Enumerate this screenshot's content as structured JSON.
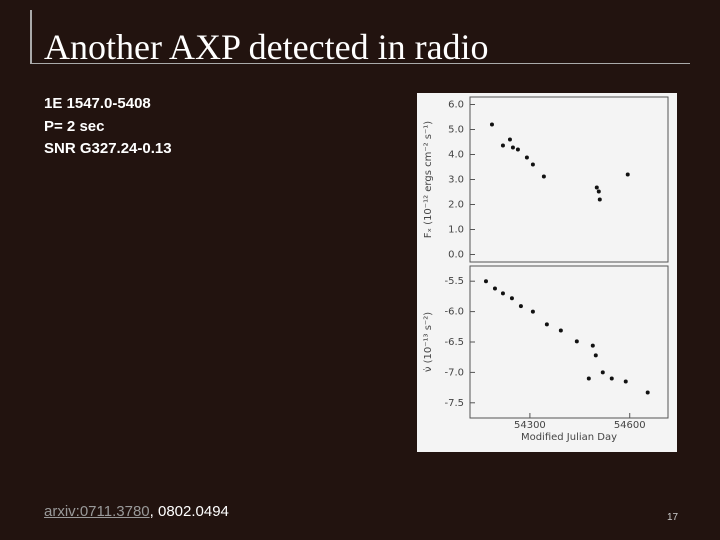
{
  "slide": {
    "title": "Another AXP detected in radio",
    "lines": [
      "1E 1547.0-5408",
      "P= 2 sec",
      "SNR G327.24-0.13"
    ]
  },
  "footer": {
    "link": "arxiv:0711.3780",
    "rest": ", 0802.0494"
  },
  "page_number": "17",
  "chart_data": [
    {
      "type": "scatter",
      "ylabel": "Fₓ (10⁻¹² ergs cm⁻² s⁻¹)",
      "x": [
        54186,
        54219,
        54240,
        54249,
        54264,
        54291,
        54309,
        54342,
        54501,
        54507,
        54510,
        54594
      ],
      "values": [
        5.2,
        4.36,
        4.6,
        4.28,
        4.2,
        3.88,
        3.6,
        3.12,
        2.68,
        2.52,
        2.2,
        3.2
      ],
      "color": "#111111",
      "xlim": [
        54120,
        54715
      ],
      "ylim": [
        -0.3,
        6.3
      ],
      "yticks": [
        {
          "value": 0,
          "label": "0.0"
        },
        {
          "value": 1,
          "label": "1.0"
        },
        {
          "value": 2,
          "label": "2.0"
        },
        {
          "value": 3,
          "label": "3.0"
        },
        {
          "value": 4,
          "label": "4.0"
        },
        {
          "value": 5,
          "label": "5.0"
        },
        {
          "value": 6,
          "label": "6.0"
        }
      ]
    },
    {
      "type": "scatter",
      "ylabel": "ν̇ (10⁻¹³ s⁻²)",
      "xlabel": "Modified Julian Day",
      "x": [
        54168,
        54195,
        54219,
        54246,
        54273,
        54309,
        54351,
        54393,
        54441,
        54489,
        54498,
        54477,
        54519,
        54546,
        54588,
        54654
      ],
      "values": [
        -5.5,
        -5.62,
        -5.7,
        -5.78,
        -5.91,
        -6.0,
        -6.21,
        -6.31,
        -6.49,
        -6.56,
        -6.72,
        -7.1,
        -7.0,
        -7.1,
        -7.15,
        -7.33
      ],
      "color": "#111111",
      "xlim": [
        54120,
        54715
      ],
      "ylim": [
        -7.75,
        -5.25
      ],
      "xticks": [
        54300,
        54600
      ],
      "yticks": [
        -5.5,
        {
          "value": -6,
          "label": "-6.0"
        },
        -6.5,
        {
          "value": -7,
          "label": "-7.0"
        },
        -7.5
      ]
    }
  ]
}
